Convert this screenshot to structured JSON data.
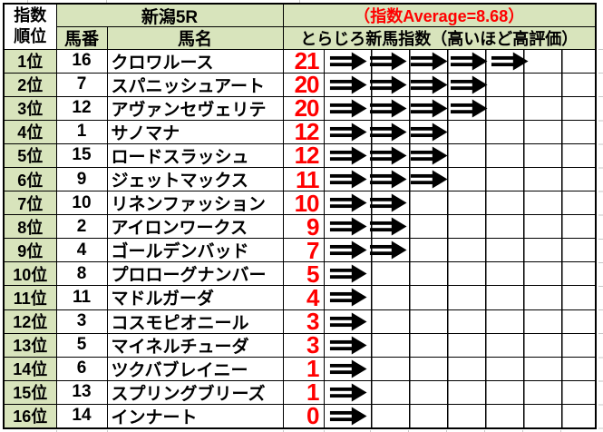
{
  "header": {
    "rank_label_line1": "指数",
    "rank_label_line2": "順位",
    "race": "新潟5R",
    "average": "（指数Average=8.68）",
    "horse_no": "馬番",
    "horse_name": "馬名",
    "index_desc": "とらじろ新馬指数（高いほど高評価）"
  },
  "colors": {
    "header_green": "#d8e4bc",
    "value_red": "#ff0000",
    "grid_black": "#000000",
    "outer_gridline_gray": "#c6c6c6"
  },
  "icons": {
    "right-arrow": "⇒"
  },
  "rows": [
    {
      "rank": "1位",
      "no": "16",
      "name": "クロワルース",
      "value": 21,
      "arrows": 5
    },
    {
      "rank": "2位",
      "no": "7",
      "name": "スパニッシュアート",
      "value": 20,
      "arrows": 4
    },
    {
      "rank": "3位",
      "no": "12",
      "name": "アヴァンセヴェリテ",
      "value": 20,
      "arrows": 4
    },
    {
      "rank": "4位",
      "no": "1",
      "name": "サノマナ",
      "value": 12,
      "arrows": 3
    },
    {
      "rank": "5位",
      "no": "15",
      "name": "ロードスラッシュ",
      "value": 12,
      "arrows": 3
    },
    {
      "rank": "6位",
      "no": "9",
      "name": "ジェットマックス",
      "value": 11,
      "arrows": 3
    },
    {
      "rank": "7位",
      "no": "10",
      "name": "リネンファッション",
      "value": 10,
      "arrows": 2
    },
    {
      "rank": "8位",
      "no": "2",
      "name": "アイロンワークス",
      "value": 9,
      "arrows": 2
    },
    {
      "rank": "9位",
      "no": "4",
      "name": "ゴールデンバッド",
      "value": 7,
      "arrows": 2
    },
    {
      "rank": "10位",
      "no": "8",
      "name": "プロローグナンバー",
      "value": 5,
      "arrows": 1
    },
    {
      "rank": "11位",
      "no": "11",
      "name": "マドルガーダ",
      "value": 4,
      "arrows": 1
    },
    {
      "rank": "12位",
      "no": "3",
      "name": "コスモピオニール",
      "value": 3,
      "arrows": 1
    },
    {
      "rank": "13位",
      "no": "5",
      "name": "マイネルチューダ",
      "value": 3,
      "arrows": 1
    },
    {
      "rank": "14位",
      "no": "6",
      "name": "ツクバブレイニー",
      "value": 1,
      "arrows": 1
    },
    {
      "rank": "15位",
      "no": "13",
      "name": "スプリングブリーズ",
      "value": 1,
      "arrows": 1
    },
    {
      "rank": "16位",
      "no": "14",
      "name": "インナート",
      "value": 0,
      "arrows": 1
    }
  ]
}
